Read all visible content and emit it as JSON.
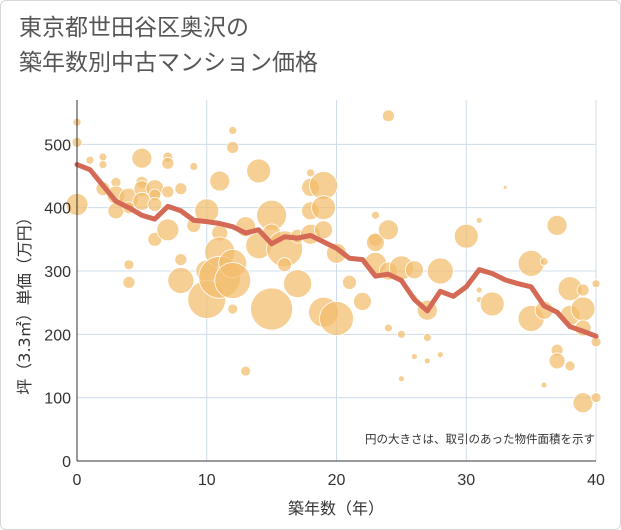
{
  "title_line1": "東京都世田谷区奥沢の",
  "title_line2": "築年数別中古マンション価格",
  "chart_data": {
    "type": "scatter",
    "title": "東京都世田谷区奥沢の築年数別中古マンション価格",
    "xlabel": "築年数（年）",
    "ylabel": "坪（3.3㎡）単価（万円）",
    "xlim": [
      0,
      40
    ],
    "ylim": [
      0,
      570
    ],
    "xticks": [
      0,
      10,
      20,
      30,
      40
    ],
    "yticks": [
      0,
      100,
      200,
      300,
      400,
      500
    ],
    "grid": true,
    "note": "円の大きさは、取引のあった物件面積を示す",
    "bubble_color": "#f3bc6c",
    "line_color": "#d46a55",
    "bubbles": [
      {
        "x": 0,
        "y": 535,
        "s": 4
      },
      {
        "x": 0,
        "y": 503,
        "s": 5
      },
      {
        "x": 0,
        "y": 405,
        "s": 11
      },
      {
        "x": 1,
        "y": 475,
        "s": 4
      },
      {
        "x": 2,
        "y": 480,
        "s": 4
      },
      {
        "x": 2,
        "y": 468,
        "s": 4
      },
      {
        "x": 2,
        "y": 430,
        "s": 7
      },
      {
        "x": 3,
        "y": 440,
        "s": 5
      },
      {
        "x": 3,
        "y": 420,
        "s": 9
      },
      {
        "x": 3,
        "y": 395,
        "s": 8
      },
      {
        "x": 4,
        "y": 415,
        "s": 10
      },
      {
        "x": 4,
        "y": 400,
        "s": 6
      },
      {
        "x": 4,
        "y": 310,
        "s": 5
      },
      {
        "x": 4,
        "y": 282,
        "s": 6
      },
      {
        "x": 5,
        "y": 478,
        "s": 10
      },
      {
        "x": 5,
        "y": 440,
        "s": 6
      },
      {
        "x": 5,
        "y": 430,
        "s": 8
      },
      {
        "x": 5,
        "y": 410,
        "s": 9
      },
      {
        "x": 6,
        "y": 430,
        "s": 9
      },
      {
        "x": 6,
        "y": 420,
        "s": 6
      },
      {
        "x": 6,
        "y": 405,
        "s": 7
      },
      {
        "x": 6,
        "y": 350,
        "s": 7
      },
      {
        "x": 7,
        "y": 480,
        "s": 5
      },
      {
        "x": 7,
        "y": 470,
        "s": 6
      },
      {
        "x": 7,
        "y": 425,
        "s": 6
      },
      {
        "x": 7,
        "y": 365,
        "s": 11
      },
      {
        "x": 8,
        "y": 430,
        "s": 6
      },
      {
        "x": 8,
        "y": 318,
        "s": 6
      },
      {
        "x": 8,
        "y": 285,
        "s": 13
      },
      {
        "x": 9,
        "y": 465,
        "s": 4
      },
      {
        "x": 9,
        "y": 372,
        "s": 7
      },
      {
        "x": 10,
        "y": 395,
        "s": 12
      },
      {
        "x": 10,
        "y": 300,
        "s": 11
      },
      {
        "x": 10,
        "y": 255,
        "s": 19
      },
      {
        "x": 11,
        "y": 442,
        "s": 10
      },
      {
        "x": 11,
        "y": 360,
        "s": 8
      },
      {
        "x": 11,
        "y": 330,
        "s": 15
      },
      {
        "x": 11,
        "y": 290,
        "s": 21
      },
      {
        "x": 12,
        "y": 522,
        "s": 4
      },
      {
        "x": 12,
        "y": 495,
        "s": 6
      },
      {
        "x": 12,
        "y": 312,
        "s": 14
      },
      {
        "x": 12,
        "y": 285,
        "s": 18
      },
      {
        "x": 12,
        "y": 240,
        "s": 5
      },
      {
        "x": 13,
        "y": 142,
        "s": 5
      },
      {
        "x": 13,
        "y": 370,
        "s": 10
      },
      {
        "x": 14,
        "y": 458,
        "s": 12
      },
      {
        "x": 14,
        "y": 340,
        "s": 13
      },
      {
        "x": 15,
        "y": 388,
        "s": 15
      },
      {
        "x": 15,
        "y": 360,
        "s": 9
      },
      {
        "x": 15,
        "y": 240,
        "s": 21
      },
      {
        "x": 16,
        "y": 335,
        "s": 18
      },
      {
        "x": 16,
        "y": 310,
        "s": 7
      },
      {
        "x": 17,
        "y": 355,
        "s": 7
      },
      {
        "x": 17,
        "y": 280,
        "s": 14
      },
      {
        "x": 18,
        "y": 455,
        "s": 4
      },
      {
        "x": 18,
        "y": 432,
        "s": 9
      },
      {
        "x": 18,
        "y": 395,
        "s": 9
      },
      {
        "x": 18,
        "y": 358,
        "s": 10
      },
      {
        "x": 19,
        "y": 435,
        "s": 14
      },
      {
        "x": 19,
        "y": 400,
        "s": 12
      },
      {
        "x": 19,
        "y": 365,
        "s": 9
      },
      {
        "x": 19,
        "y": 235,
        "s": 15
      },
      {
        "x": 20,
        "y": 328,
        "s": 10
      },
      {
        "x": 20,
        "y": 225,
        "s": 17
      },
      {
        "x": 21,
        "y": 282,
        "s": 7
      },
      {
        "x": 22,
        "y": 252,
        "s": 9
      },
      {
        "x": 23,
        "y": 350,
        "s": 7
      },
      {
        "x": 23,
        "y": 345,
        "s": 9
      },
      {
        "x": 23,
        "y": 312,
        "s": 11
      },
      {
        "x": 23,
        "y": 388,
        "s": 4
      },
      {
        "x": 24,
        "y": 545,
        "s": 6
      },
      {
        "x": 24,
        "y": 365,
        "s": 10
      },
      {
        "x": 24,
        "y": 300,
        "s": 9
      },
      {
        "x": 24,
        "y": 210,
        "s": 4
      },
      {
        "x": 25,
        "y": 305,
        "s": 12
      },
      {
        "x": 25,
        "y": 200,
        "s": 4
      },
      {
        "x": 25,
        "y": 130,
        "s": 3
      },
      {
        "x": 26,
        "y": 302,
        "s": 9
      },
      {
        "x": 26,
        "y": 258,
        "s": 3
      },
      {
        "x": 26,
        "y": 165,
        "s": 3
      },
      {
        "x": 27,
        "y": 238,
        "s": 10
      },
      {
        "x": 27,
        "y": 195,
        "s": 4
      },
      {
        "x": 27,
        "y": 158,
        "s": 3
      },
      {
        "x": 28,
        "y": 300,
        "s": 13
      },
      {
        "x": 28,
        "y": 168,
        "s": 3
      },
      {
        "x": 30,
        "y": 355,
        "s": 12
      },
      {
        "x": 31,
        "y": 380,
        "s": 3
      },
      {
        "x": 31,
        "y": 270,
        "s": 3
      },
      {
        "x": 31,
        "y": 255,
        "s": 3
      },
      {
        "x": 32,
        "y": 248,
        "s": 12
      },
      {
        "x": 33,
        "y": 432,
        "s": 2
      },
      {
        "x": 35,
        "y": 312,
        "s": 13
      },
      {
        "x": 35,
        "y": 225,
        "s": 13
      },
      {
        "x": 36,
        "y": 315,
        "s": 4
      },
      {
        "x": 36,
        "y": 238,
        "s": 9
      },
      {
        "x": 36,
        "y": 120,
        "s": 3
      },
      {
        "x": 37,
        "y": 372,
        "s": 10
      },
      {
        "x": 37,
        "y": 175,
        "s": 6
      },
      {
        "x": 37,
        "y": 158,
        "s": 8
      },
      {
        "x": 38,
        "y": 272,
        "s": 12
      },
      {
        "x": 38,
        "y": 230,
        "s": 10
      },
      {
        "x": 38,
        "y": 150,
        "s": 5
      },
      {
        "x": 39,
        "y": 270,
        "s": 6
      },
      {
        "x": 39,
        "y": 240,
        "s": 12
      },
      {
        "x": 39,
        "y": 210,
        "s": 8
      },
      {
        "x": 39,
        "y": 92,
        "s": 10
      },
      {
        "x": 40,
        "y": 280,
        "s": 4
      },
      {
        "x": 40,
        "y": 188,
        "s": 5
      },
      {
        "x": 40,
        "y": 100,
        "s": 5
      }
    ],
    "trend": {
      "x": [
        0,
        1,
        2,
        3,
        4,
        5,
        6,
        7,
        8,
        9,
        10,
        11,
        12,
        13,
        14,
        15,
        16,
        17,
        18,
        19,
        20,
        21,
        22,
        23,
        24,
        25,
        26,
        27,
        28,
        29,
        30,
        31,
        32,
        33,
        34,
        35,
        36,
        37,
        38,
        39,
        40
      ],
      "y": [
        468,
        460,
        435,
        410,
        400,
        388,
        382,
        402,
        395,
        380,
        378,
        375,
        370,
        360,
        365,
        343,
        354,
        352,
        356,
        346,
        336,
        320,
        318,
        292,
        295,
        285,
        255,
        237,
        268,
        260,
        275,
        302,
        296,
        286,
        280,
        275,
        245,
        235,
        212,
        205,
        197
      ]
    }
  }
}
